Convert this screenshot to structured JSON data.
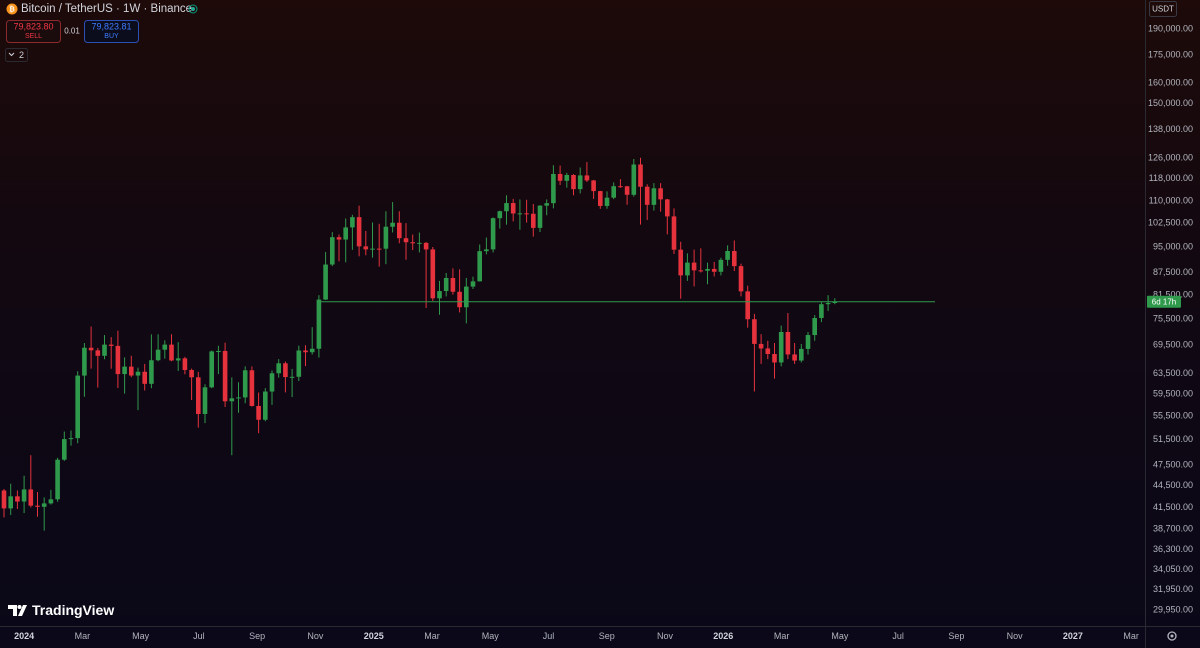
{
  "header": {
    "symbol": "Bitcoin / TetherUS · 1W · Binance",
    "sell_price": "79,823.80",
    "sell_label": "SELL",
    "quantity": "0.01",
    "buy_price": "79,823.81",
    "buy_label": "BUY",
    "indicators_count": "2"
  },
  "currency": "USDT",
  "countdown": "6d 17h",
  "logo": "TradingView",
  "chart_data": {
    "type": "candlestick",
    "log_scale": true,
    "up_color": "#2f9a4c",
    "down_color": "#e5323d",
    "open": [
      43790,
      41370,
      42990,
      42280,
      43940,
      41730,
      41580,
      42030,
      42580,
      48300,
      51570,
      51730,
      63110,
      68960,
      68390,
      67210,
      69650,
      69360,
      63420,
      64940,
      63120,
      63890,
      61480,
      66270,
      68530,
      69650,
      66220,
      66670,
      64250,
      62770,
      55860,
      60800,
      68160,
      68250,
      58160,
      58710,
      58880,
      64190,
      57300,
      54840,
      59990,
      63580,
      65630,
      62820,
      62870,
      68360,
      67980,
      68740,
      80370,
      89850,
      98010,
      97280,
      101110,
      104460,
      95190,
      94280,
      94510,
      94490,
      101330,
      102620,
      97700,
      96460,
      96120,
      96260,
      94270,
      80700,
      82580,
      86080,
      82390,
      78430,
      83760,
      85170,
      93750,
      94280,
      104120,
      106450,
      109250,
      105690,
      105730,
      105590,
      100960,
      108350,
      109200,
      119840,
      117270,
      119450,
      114200,
      119290,
      117400,
      113490,
      108250,
      111140,
      115270,
      115230,
      112160,
      123510,
      115070,
      108640,
      114500,
      110540,
      104710,
      94200,
      86800,
      90400,
      88200,
      88100,
      88600,
      87800,
      91200,
      93800,
      89400,
      82500,
      75500,
      69800,
      68800,
      67600,
      65800,
      72500,
      67500,
      66200,
      68700,
      71800,
      75800,
      79200,
      79500
    ],
    "high": [
      44000,
      44750,
      43800,
      45900,
      49000,
      43580,
      42840,
      43880,
      48590,
      52820,
      52990,
      64000,
      70000,
      73780,
      68920,
      71770,
      71330,
      72800,
      66870,
      67230,
      64730,
      65500,
      71950,
      71980,
      70610,
      71990,
      70190,
      66990,
      64530,
      63860,
      61400,
      68360,
      69400,
      70080,
      62750,
      61800,
      65000,
      64990,
      59800,
      60650,
      64130,
      66500,
      66000,
      64480,
      69420,
      69520,
      73620,
      81500,
      93480,
      99590,
      98870,
      104000,
      105250,
      108350,
      99960,
      102720,
      102280,
      106420,
      109590,
      106450,
      102500,
      98830,
      99480,
      96500,
      95000,
      85300,
      87470,
      88770,
      88500,
      86100,
      86430,
      95760,
      97900,
      104360,
      106660,
      111980,
      110720,
      110500,
      110400,
      108950,
      108530,
      110530,
      123220,
      123100,
      120250,
      119800,
      122320,
      124470,
      117600,
      113600,
      113380,
      116670,
      117900,
      115400,
      125700,
      126200,
      115970,
      116400,
      116400,
      110700,
      107400,
      96600,
      93100,
      94200,
      94600,
      90400,
      90600,
      91800,
      95500,
      97000,
      90100,
      84000,
      76800,
      72000,
      70500,
      70000,
      74000,
      77000,
      70000,
      69800,
      72500,
      76500,
      79800,
      81500,
      80700
    ],
    "low": [
      40200,
      40500,
      41300,
      40750,
      41500,
      40280,
      38550,
      41880,
      42250,
      48120,
      50520,
      50900,
      59000,
      64530,
      60760,
      66480,
      64500,
      60660,
      59600,
      62790,
      56550,
      60190,
      60630,
      66060,
      66600,
      66050,
      64060,
      63380,
      58400,
      53490,
      54260,
      60630,
      63410,
      57120,
      49000,
      56080,
      57800,
      57200,
      52550,
      54580,
      57490,
      62700,
      59830,
      58950,
      62030,
      65050,
      67470,
      66830,
      80300,
      89390,
      90790,
      90500,
      94150,
      92230,
      92540,
      91830,
      89260,
      89950,
      99500,
      96150,
      91230,
      94090,
      93380,
      78250,
      80000,
      76600,
      81180,
      81640,
      77150,
      74510,
      83110,
      85140,
      92800,
      93380,
      100720,
      102000,
      103070,
      100370,
      102660,
      98200,
      99640,
      105100,
      107430,
      115700,
      114720,
      112000,
      112650,
      116800,
      110680,
      107260,
      107270,
      110620,
      114700,
      108650,
      111500,
      102000,
      103500,
      106670,
      106300,
      98900,
      92900,
      80600,
      85300,
      83800,
      87600,
      84400,
      86500,
      86800,
      89500,
      88000,
      81200,
      73500,
      60000,
      65500,
      66500,
      62500,
      65000,
      66500,
      65500,
      65800,
      67500,
      70500,
      74800,
      77500,
      79200
    ],
    "close": [
      41370,
      42990,
      42280,
      43940,
      41730,
      41580,
      42030,
      42580,
      48300,
      51570,
      51730,
      63110,
      68960,
      68390,
      67210,
      69650,
      69360,
      63420,
      64940,
      63120,
      63890,
      61480,
      66270,
      68530,
      69650,
      66220,
      66670,
      64250,
      62770,
      55860,
      60800,
      68160,
      68250,
      58160,
      58710,
      58880,
      64190,
      57300,
      54840,
      59990,
      63580,
      65630,
      62820,
      62870,
      68360,
      67980,
      68740,
      80370,
      89850,
      98010,
      97280,
      101110,
      104460,
      95190,
      94280,
      94510,
      94490,
      101330,
      102620,
      97700,
      96460,
      96120,
      96260,
      94270,
      80700,
      82580,
      86080,
      82390,
      78430,
      83760,
      85170,
      93750,
      94280,
      104120,
      106450,
      109250,
      105690,
      105730,
      105590,
      100960,
      108350,
      109200,
      119840,
      117270,
      119450,
      114200,
      119290,
      117400,
      113490,
      108250,
      111140,
      115270,
      115230,
      112160,
      123510,
      115070,
      108640,
      114500,
      110540,
      104710,
      94200,
      86800,
      90400,
      88200,
      88100,
      88600,
      87800,
      91200,
      93800,
      89400,
      82500,
      75500,
      69800,
      68800,
      67600,
      65800,
      72500,
      67500,
      66200,
      68700,
      71800,
      75800,
      79200,
      79500,
      79823.8
    ],
    "ylim": [
      28460,
      208400
    ],
    "yticks": [
      {
        "value": 190000,
        "label": "190,000.00"
      },
      {
        "value": 175000,
        "label": "175,000.00"
      },
      {
        "value": 160000,
        "label": "160,000.00"
      },
      {
        "value": 150000,
        "label": "150,000.00"
      },
      {
        "value": 138000,
        "label": "138,000.00"
      },
      {
        "value": 126000,
        "label": "126,000.00"
      },
      {
        "value": 118000,
        "label": "118,000.00"
      },
      {
        "value": 110000,
        "label": "110,000.00"
      },
      {
        "value": 102500,
        "label": "102,500.00"
      },
      {
        "value": 95000,
        "label": "95,000.00"
      },
      {
        "value": 87500,
        "label": "87,500.00"
      },
      {
        "value": 81500,
        "label": "81,500.00"
      },
      {
        "value": 75500,
        "label": "75,500.00"
      },
      {
        "value": 69500,
        "label": "69,500.00"
      },
      {
        "value": 63500,
        "label": "63,500.00"
      },
      {
        "value": 59500,
        "label": "59,500.00"
      },
      {
        "value": 55500,
        "label": "55,500.00"
      },
      {
        "value": 51500,
        "label": "51,500.00"
      },
      {
        "value": 47500,
        "label": "47,500.00"
      },
      {
        "value": 44500,
        "label": "44,500.00"
      },
      {
        "value": 41500,
        "label": "41,500.00"
      },
      {
        "value": 38700,
        "label": "38,700.00"
      },
      {
        "value": 36300,
        "label": "36,300.00"
      },
      {
        "value": 34050,
        "label": "34,050.00"
      },
      {
        "value": 31950,
        "label": "31,950.00"
      },
      {
        "value": 29950,
        "label": "29,950.00"
      }
    ],
    "x_labels": [
      "2024",
      "Mar",
      "May",
      "Jul",
      "Sep",
      "Nov",
      "2025",
      "Mar",
      "May",
      "Jul",
      "Sep",
      "Nov",
      "2026",
      "Mar",
      "May",
      "Jul",
      "Sep",
      "Nov",
      "2027",
      "Mar"
    ]
  }
}
